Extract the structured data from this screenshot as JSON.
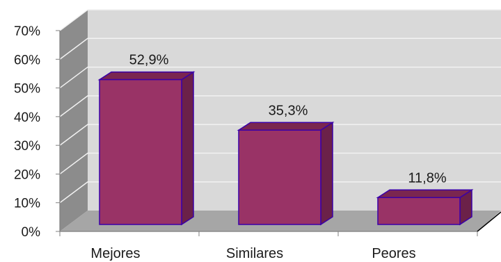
{
  "chart_data": {
    "type": "bar",
    "categories": [
      "Mejores",
      "Similares",
      "Peores"
    ],
    "values": [
      52.9,
      35.3,
      11.8
    ],
    "data_labels": [
      "52,9%",
      "35,3%",
      "11,8%"
    ],
    "y_ticks": [
      "0%",
      "10%",
      "20%",
      "30%",
      "40%",
      "50%",
      "60%",
      "70%"
    ],
    "ylim": [
      0,
      70
    ],
    "grid": true,
    "legend": "none",
    "style": "3d",
    "colors": {
      "bar_front": "#993366",
      "bar_top": "#7a2650",
      "bar_side": "#6b2149",
      "bar_edge": "#3a00a8",
      "wall": "#d9d9d9",
      "side_wall": "#8c8c8c",
      "floor": "#a6a6a6",
      "grid": "#f2f2f2"
    }
  }
}
